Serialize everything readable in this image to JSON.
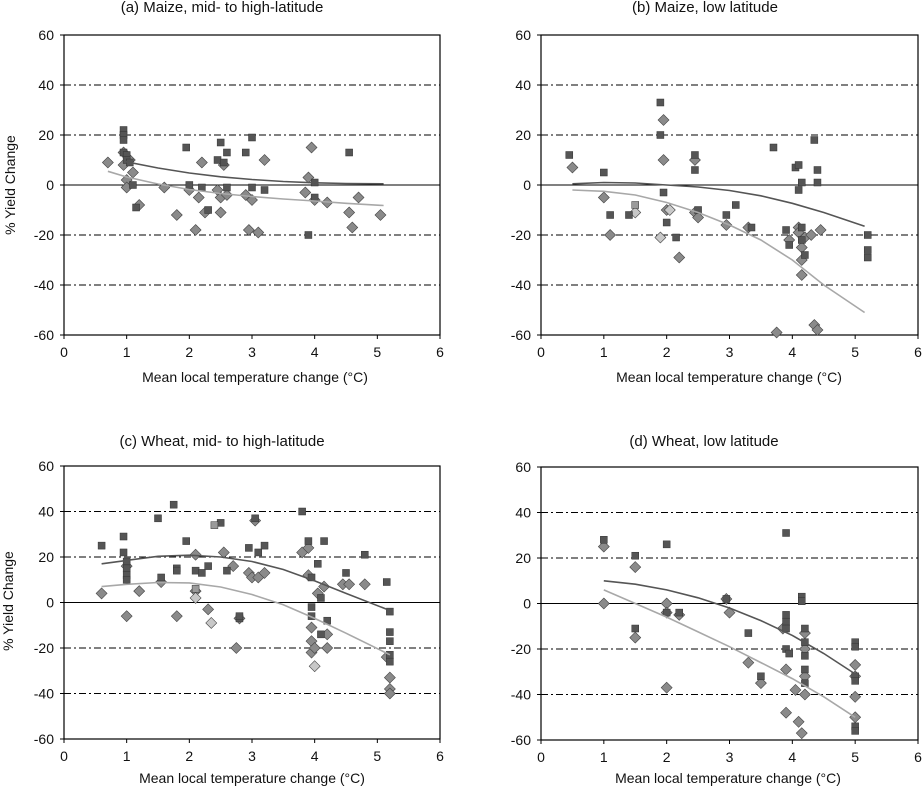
{
  "colors": {
    "square": "#555555",
    "square_light": "#9a9a9a",
    "diamond": "#8a8a8a",
    "diamond_light": "#c8c8c8",
    "curve_dark": "#555555",
    "curve_light": "#a8a8a8",
    "axis": "#000000",
    "dashdot": "#000000"
  },
  "chart_data": [
    {
      "type": "scatter",
      "title": "(a) Maize, mid- to high-latitude",
      "xlabel": "Mean local temperature change (°C)",
      "ylabel": "% Yield Change",
      "xlim": [
        0,
        6
      ],
      "ylim": [
        -60,
        60
      ],
      "xticks": [
        "0",
        "1",
        "2",
        "3",
        "4",
        "5",
        "6"
      ],
      "yticks": [
        "60",
        "40",
        "20",
        "0",
        "-20",
        "-40",
        "-60"
      ],
      "dashdot_lines": [
        40,
        20,
        -20,
        -40
      ],
      "zero_line": 0,
      "squares": [
        [
          0.95,
          22
        ],
        [
          0.95,
          20
        ],
        [
          0.95,
          18
        ],
        [
          0.95,
          13
        ],
        [
          1.0,
          12
        ],
        [
          1.0,
          10
        ],
        [
          1.05,
          9
        ],
        [
          1.1,
          0
        ],
        [
          1.15,
          -9
        ],
        [
          1.95,
          15
        ],
        [
          2.0,
          0
        ],
        [
          2.2,
          -1
        ],
        [
          2.3,
          -10
        ],
        [
          2.45,
          10
        ],
        [
          2.5,
          17
        ],
        [
          2.55,
          9
        ],
        [
          2.6,
          13
        ],
        [
          2.6,
          -1
        ],
        [
          2.9,
          13
        ],
        [
          3.0,
          19
        ],
        [
          3.0,
          -1
        ],
        [
          3.2,
          -2
        ],
        [
          3.9,
          -20
        ],
        [
          4.0,
          1
        ],
        [
          4.0,
          -5
        ],
        [
          4.55,
          13
        ]
      ],
      "diamonds": [
        [
          0.7,
          9
        ],
        [
          0.95,
          13
        ],
        [
          0.95,
          8
        ],
        [
          1.0,
          2
        ],
        [
          1.0,
          -1
        ],
        [
          1.05,
          10
        ],
        [
          1.1,
          5
        ],
        [
          1.2,
          -8
        ],
        [
          1.6,
          -1
        ],
        [
          1.8,
          -12
        ],
        [
          2.0,
          -2
        ],
        [
          2.1,
          -18
        ],
        [
          2.15,
          -5
        ],
        [
          2.2,
          9
        ],
        [
          2.25,
          -11
        ],
        [
          2.45,
          -2
        ],
        [
          2.5,
          -5
        ],
        [
          2.5,
          -11
        ],
        [
          2.55,
          8
        ],
        [
          2.6,
          -4
        ],
        [
          2.9,
          -4
        ],
        [
          2.95,
          -18
        ],
        [
          3.0,
          -6
        ],
        [
          3.1,
          -19
        ],
        [
          3.2,
          10
        ],
        [
          3.85,
          -3
        ],
        [
          3.9,
          3
        ],
        [
          3.95,
          15
        ],
        [
          4.0,
          -6
        ],
        [
          4.2,
          -7
        ],
        [
          4.55,
          -11
        ],
        [
          4.6,
          -17
        ],
        [
          4.7,
          -5
        ],
        [
          5.05,
          -12
        ]
      ],
      "squares_light": [],
      "diamonds_light": [],
      "curve_dark": [
        [
          0.95,
          9.5
        ],
        [
          1.5,
          6.8
        ],
        [
          2.0,
          4.8
        ],
        [
          2.5,
          3.3
        ],
        [
          3.0,
          2.2
        ],
        [
          3.5,
          1.4
        ],
        [
          4.0,
          0.9
        ],
        [
          4.5,
          0.6
        ],
        [
          5.1,
          0.5
        ]
      ],
      "curve_light": [
        [
          0.7,
          5.5
        ],
        [
          1.0,
          3.2
        ],
        [
          1.5,
          0.4
        ],
        [
          2.0,
          -1.8
        ],
        [
          2.5,
          -3.4
        ],
        [
          3.0,
          -4.6
        ],
        [
          3.5,
          -5.6
        ],
        [
          4.0,
          -6.4
        ],
        [
          4.5,
          -7.3
        ],
        [
          5.1,
          -8.2
        ]
      ]
    },
    {
      "type": "scatter",
      "title": "(b) Maize, low latitude",
      "xlabel": "Mean local temperature change (°C)",
      "ylabel": "",
      "xlim": [
        0,
        6
      ],
      "ylim": [
        -60,
        60
      ],
      "xticks": [
        "0",
        "1",
        "2",
        "3",
        "4",
        "5",
        "6"
      ],
      "yticks": [
        "60",
        "40",
        "20",
        "0",
        "-20",
        "-40",
        "-60"
      ],
      "dashdot_lines": [
        40,
        20,
        -20,
        -40
      ],
      "zero_line": 0,
      "squares": [
        [
          0.45,
          12
        ],
        [
          1.0,
          5
        ],
        [
          1.1,
          -12
        ],
        [
          1.4,
          -12
        ],
        [
          1.9,
          33
        ],
        [
          1.9,
          20
        ],
        [
          1.95,
          -3
        ],
        [
          2.0,
          -15
        ],
        [
          2.15,
          -21
        ],
        [
          2.45,
          12
        ],
        [
          2.45,
          6
        ],
        [
          2.5,
          -10
        ],
        [
          2.95,
          -12
        ],
        [
          3.1,
          -8
        ],
        [
          3.35,
          -17
        ],
        [
          3.7,
          15
        ],
        [
          3.9,
          -18
        ],
        [
          3.95,
          -24
        ],
        [
          4.05,
          7
        ],
        [
          4.1,
          8
        ],
        [
          4.1,
          -2
        ],
        [
          4.15,
          1
        ],
        [
          4.15,
          -17
        ],
        [
          4.15,
          -22
        ],
        [
          4.2,
          -28
        ],
        [
          4.35,
          18
        ],
        [
          4.4,
          6
        ],
        [
          4.4,
          1
        ],
        [
          5.2,
          -20
        ],
        [
          5.2,
          -26
        ],
        [
          5.2,
          -29
        ]
      ],
      "diamonds": [
        [
          0.5,
          7
        ],
        [
          1.0,
          -5
        ],
        [
          1.1,
          -20
        ],
        [
          1.95,
          26
        ],
        [
          1.95,
          10
        ],
        [
          2.0,
          -10
        ],
        [
          2.2,
          -29
        ],
        [
          2.45,
          10
        ],
        [
          2.45,
          -11
        ],
        [
          2.5,
          -13
        ],
        [
          2.95,
          -16
        ],
        [
          3.3,
          -17
        ],
        [
          3.75,
          -59
        ],
        [
          3.95,
          -22
        ],
        [
          4.1,
          -17
        ],
        [
          4.1,
          -19
        ],
        [
          4.15,
          -25
        ],
        [
          4.15,
          -30
        ],
        [
          4.15,
          -36
        ],
        [
          4.2,
          -21
        ],
        [
          4.3,
          -20
        ],
        [
          4.35,
          -56
        ],
        [
          4.4,
          -58
        ],
        [
          4.45,
          -18
        ]
      ],
      "squares_light": [
        [
          1.5,
          -8
        ]
      ],
      "diamonds_light": [
        [
          1.5,
          -11
        ],
        [
          1.9,
          -21
        ],
        [
          2.05,
          -10
        ]
      ],
      "curve_dark": [
        [
          0.5,
          0.5
        ],
        [
          1.0,
          1.0
        ],
        [
          1.5,
          0.8
        ],
        [
          2.0,
          0
        ],
        [
          2.5,
          -0.8
        ],
        [
          3.0,
          -2.2
        ],
        [
          3.5,
          -4.3
        ],
        [
          4.0,
          -7.3
        ],
        [
          4.5,
          -11.0
        ],
        [
          5.15,
          -16.5
        ]
      ],
      "curve_light": [
        [
          0.5,
          -2
        ],
        [
          1.0,
          -2.5
        ],
        [
          1.5,
          -4
        ],
        [
          2.0,
          -7
        ],
        [
          2.5,
          -11
        ],
        [
          3.0,
          -16
        ],
        [
          3.5,
          -22
        ],
        [
          4.0,
          -30
        ],
        [
          4.5,
          -40
        ],
        [
          5.15,
          -51
        ]
      ]
    },
    {
      "type": "scatter",
      "title": "(c) Wheat, mid- to high-latitude",
      "xlabel": "Mean local temperature change (°C)",
      "ylabel": "% Yield Change",
      "xlim": [
        0,
        6
      ],
      "ylim": [
        -60,
        60
      ],
      "xticks": [
        "0",
        "1",
        "2",
        "3",
        "4",
        "5",
        "6"
      ],
      "yticks": [
        "60",
        "40",
        "20",
        "0",
        "-20",
        "-40",
        "-60"
      ],
      "dashdot_lines": [
        40,
        20,
        -20,
        -40
      ],
      "zero_line": 0,
      "squares": [
        [
          0.6,
          25
        ],
        [
          0.95,
          29
        ],
        [
          0.95,
          22
        ],
        [
          1.0,
          18
        ],
        [
          1.0,
          15
        ],
        [
          1.0,
          12
        ],
        [
          1.0,
          10
        ],
        [
          1.5,
          37
        ],
        [
          1.55,
          11
        ],
        [
          1.75,
          43
        ],
        [
          1.8,
          15
        ],
        [
          1.8,
          14
        ],
        [
          1.95,
          27
        ],
        [
          2.1,
          14
        ],
        [
          2.2,
          13
        ],
        [
          2.3,
          16
        ],
        [
          2.5,
          35
        ],
        [
          2.6,
          14
        ],
        [
          2.8,
          -7
        ],
        [
          2.8,
          -6
        ],
        [
          2.95,
          24
        ],
        [
          3.05,
          37
        ],
        [
          3.1,
          22
        ],
        [
          3.2,
          25
        ],
        [
          3.8,
          40
        ],
        [
          3.9,
          27
        ],
        [
          3.95,
          11
        ],
        [
          3.95,
          -2
        ],
        [
          3.95,
          -6
        ],
        [
          4.05,
          17
        ],
        [
          4.1,
          2
        ],
        [
          4.1,
          -14
        ],
        [
          4.15,
          27
        ],
        [
          4.2,
          -8
        ],
        [
          4.5,
          13
        ],
        [
          4.8,
          21
        ],
        [
          5.15,
          9
        ],
        [
          5.2,
          -4
        ],
        [
          5.2,
          -13
        ],
        [
          5.2,
          -17
        ],
        [
          5.2,
          -23
        ],
        [
          5.2,
          -26
        ]
      ],
      "diamonds": [
        [
          0.6,
          4
        ],
        [
          1.0,
          16
        ],
        [
          1.0,
          -6
        ],
        [
          1.2,
          5
        ],
        [
          1.55,
          9
        ],
        [
          1.8,
          -6
        ],
        [
          2.1,
          21
        ],
        [
          2.1,
          5
        ],
        [
          2.3,
          -3
        ],
        [
          2.55,
          22
        ],
        [
          2.7,
          16
        ],
        [
          2.75,
          -20
        ],
        [
          2.8,
          -7
        ],
        [
          2.95,
          13
        ],
        [
          3.0,
          11
        ],
        [
          3.05,
          36
        ],
        [
          3.1,
          11
        ],
        [
          3.2,
          13
        ],
        [
          3.8,
          22
        ],
        [
          3.9,
          24
        ],
        [
          3.9,
          12
        ],
        [
          3.95,
          -11
        ],
        [
          3.95,
          -17
        ],
        [
          3.95,
          -22
        ],
        [
          4.0,
          -20
        ],
        [
          4.05,
          4
        ],
        [
          4.15,
          7
        ],
        [
          4.2,
          -14
        ],
        [
          4.2,
          -20
        ],
        [
          4.45,
          8
        ],
        [
          4.55,
          8
        ],
        [
          4.8,
          8
        ],
        [
          5.15,
          -24
        ],
        [
          5.2,
          -33
        ],
        [
          5.2,
          -38
        ],
        [
          5.2,
          -40
        ]
      ],
      "squares_light": [
        [
          2.1,
          6
        ],
        [
          2.4,
          34
        ]
      ],
      "diamonds_light": [
        [
          2.1,
          2
        ],
        [
          2.35,
          -9
        ],
        [
          4.0,
          -28
        ]
      ],
      "curve_dark": [
        [
          0.6,
          17
        ],
        [
          1.0,
          18.5
        ],
        [
          1.5,
          20.3
        ],
        [
          2.0,
          20.8
        ],
        [
          2.5,
          20
        ],
        [
          3.0,
          18
        ],
        [
          3.5,
          14.5
        ],
        [
          4.0,
          9.5
        ],
        [
          4.5,
          4
        ],
        [
          5.2,
          -3.5
        ]
      ],
      "curve_light": [
        [
          0.6,
          7
        ],
        [
          1.0,
          8
        ],
        [
          1.5,
          8.8
        ],
        [
          2.0,
          8.6
        ],
        [
          2.5,
          6.8
        ],
        [
          3.0,
          3.5
        ],
        [
          3.5,
          -1
        ],
        [
          4.0,
          -7
        ],
        [
          4.5,
          -13.5
        ],
        [
          5.2,
          -23
        ]
      ]
    },
    {
      "type": "scatter",
      "title": "(d) Wheat, low latitude",
      "xlabel": "Mean local temperature change (°C)",
      "ylabel": "",
      "xlim": [
        0,
        6
      ],
      "ylim": [
        -60,
        60
      ],
      "xticks": [
        "0",
        "1",
        "2",
        "3",
        "4",
        "5",
        "6"
      ],
      "yticks": [
        "60",
        "40",
        "20",
        "0",
        "-20",
        "-40",
        "-60"
      ],
      "dashdot_lines": [
        40,
        20,
        -20,
        -40
      ],
      "zero_line": 0,
      "squares": [
        [
          1.0,
          28
        ],
        [
          1.5,
          21
        ],
        [
          1.5,
          -11
        ],
        [
          2.0,
          26
        ],
        [
          2.0,
          -4
        ],
        [
          2.2,
          -4
        ],
        [
          2.95,
          2
        ],
        [
          3.3,
          -13
        ],
        [
          3.5,
          -32
        ],
        [
          3.9,
          31
        ],
        [
          3.9,
          -5
        ],
        [
          3.9,
          -8
        ],
        [
          3.9,
          -11
        ],
        [
          3.9,
          -20
        ],
        [
          3.95,
          -22
        ],
        [
          4.15,
          3
        ],
        [
          4.15,
          1
        ],
        [
          4.2,
          -11
        ],
        [
          4.2,
          -17
        ],
        [
          4.2,
          -23
        ],
        [
          4.2,
          -29
        ],
        [
          4.2,
          -35
        ],
        [
          5.0,
          -17
        ],
        [
          5.0,
          -19
        ],
        [
          5.0,
          -32
        ],
        [
          5.0,
          -34
        ],
        [
          5.0,
          -54
        ],
        [
          5.0,
          -56
        ]
      ],
      "diamonds": [
        [
          1.0,
          25
        ],
        [
          1.0,
          0
        ],
        [
          1.5,
          16
        ],
        [
          1.5,
          -15
        ],
        [
          2.0,
          0
        ],
        [
          2.0,
          -4
        ],
        [
          2.0,
          -37
        ],
        [
          2.2,
          -5
        ],
        [
          2.95,
          2
        ],
        [
          3.0,
          -4
        ],
        [
          3.3,
          -26
        ],
        [
          3.5,
          -35
        ],
        [
          3.85,
          -11
        ],
        [
          3.9,
          -29
        ],
        [
          3.9,
          -48
        ],
        [
          4.05,
          -38
        ],
        [
          4.1,
          -52
        ],
        [
          4.15,
          -57
        ],
        [
          4.2,
          -13
        ],
        [
          4.2,
          -20
        ],
        [
          4.2,
          -32
        ],
        [
          4.2,
          -40
        ],
        [
          5.0,
          -27
        ],
        [
          5.0,
          -32
        ],
        [
          5.0,
          -41
        ],
        [
          5.0,
          -50
        ]
      ],
      "squares_light": [],
      "diamonds_light": [],
      "curve_dark": [
        [
          1.0,
          10
        ],
        [
          1.5,
          8.5
        ],
        [
          2.0,
          6
        ],
        [
          2.5,
          2.5
        ],
        [
          3.0,
          -2
        ],
        [
          3.5,
          -7.5
        ],
        [
          4.0,
          -14
        ],
        [
          4.5,
          -22
        ],
        [
          5.0,
          -31
        ]
      ],
      "curve_light": [
        [
          1.0,
          6
        ],
        [
          1.5,
          0
        ],
        [
          2.0,
          -6
        ],
        [
          2.5,
          -12.5
        ],
        [
          3.0,
          -19
        ],
        [
          3.5,
          -26
        ],
        [
          4.0,
          -33
        ],
        [
          4.5,
          -41
        ],
        [
          5.0,
          -50
        ]
      ]
    }
  ]
}
